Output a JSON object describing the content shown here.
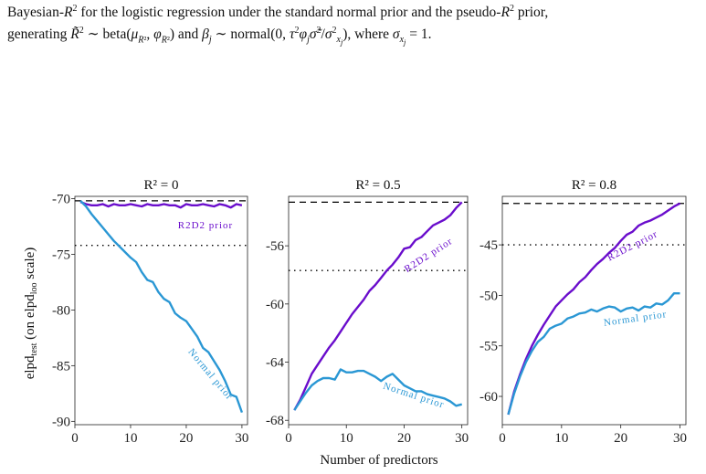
{
  "caption": {
    "line1": "Bayesian-R² for the logistic regression under the standard normal prior and the pseudo-R² prior,",
    "line2": "generating R̃² ∼ beta(μR², φR²) and βj ∼ normal(0, τ²φj σ̃²/σ²xj), where σxj = 1."
  },
  "colors": {
    "r2d2": "#6a0dcc",
    "normal": "#2a97d4",
    "reference": "#000000"
  },
  "chart_data": [
    {
      "type": "line",
      "title": "R² = 0",
      "ylabel": "elpd_test (on elpd_loo scale)",
      "xlim": [
        0,
        31
      ],
      "ylim": [
        -90.3,
        -69.8
      ],
      "xticks": [
        0,
        10,
        20,
        30
      ],
      "yticks": [
        -70,
        -75,
        -80,
        -85,
        -90
      ],
      "hline_dashed": -70.2,
      "hline_dotted": -74.2,
      "x": [
        1,
        2,
        3,
        4,
        5,
        6,
        7,
        8,
        9,
        10,
        11,
        12,
        13,
        14,
        15,
        16,
        17,
        18,
        19,
        20,
        21,
        22,
        23,
        24,
        25,
        26,
        27,
        28,
        29,
        30
      ],
      "series": [
        {
          "name": "R2D2 prior",
          "color": "#6a0dcc",
          "values": [
            -70.3,
            -70.5,
            -70.6,
            -70.6,
            -70.5,
            -70.7,
            -70.5,
            -70.6,
            -70.6,
            -70.5,
            -70.6,
            -70.7,
            -70.5,
            -70.6,
            -70.6,
            -70.5,
            -70.6,
            -70.6,
            -70.8,
            -70.5,
            -70.6,
            -70.6,
            -70.5,
            -70.6,
            -70.7,
            -70.5,
            -70.6,
            -70.8,
            -70.5,
            -70.6
          ]
        },
        {
          "name": "Normal prior",
          "color": "#2a97d4",
          "values": [
            -70.2,
            -70.7,
            -71.4,
            -72.0,
            -72.6,
            -73.2,
            -73.8,
            -74.3,
            -74.8,
            -75.3,
            -75.7,
            -76.6,
            -77.3,
            -77.5,
            -78.4,
            -79.0,
            -79.3,
            -80.3,
            -80.7,
            -81.0,
            -81.7,
            -82.4,
            -83.4,
            -83.8,
            -84.6,
            -85.4,
            -86.4,
            -87.6,
            -87.8,
            -89.2
          ]
        }
      ]
    },
    {
      "type": "line",
      "title": "R² = 0.5",
      "ylabel": "",
      "xlim": [
        0,
        31
      ],
      "ylim": [
        -68.3,
        -52.6
      ],
      "xticks": [
        0,
        10,
        20,
        30
      ],
      "yticks": [
        -56,
        -60,
        -64,
        -68
      ],
      "hline_dashed": -53.0,
      "hline_dotted": -57.7,
      "x": [
        1,
        2,
        3,
        4,
        5,
        6,
        7,
        8,
        9,
        10,
        11,
        12,
        13,
        14,
        15,
        16,
        17,
        18,
        19,
        20,
        21,
        22,
        23,
        24,
        25,
        26,
        27,
        28,
        29,
        30
      ],
      "series": [
        {
          "name": "R2D2 prior",
          "color": "#6a0dcc",
          "values": [
            -67.3,
            -66.6,
            -65.7,
            -64.8,
            -64.2,
            -63.6,
            -63.0,
            -62.5,
            -61.9,
            -61.3,
            -60.7,
            -60.2,
            -59.7,
            -59.1,
            -58.7,
            -58.2,
            -57.7,
            -57.3,
            -56.8,
            -56.2,
            -56.1,
            -55.6,
            -55.4,
            -55.0,
            -54.6,
            -54.4,
            -54.2,
            -53.9,
            -53.4,
            -53.0
          ]
        },
        {
          "name": "Normal prior",
          "color": "#2a97d4",
          "values": [
            -67.3,
            -66.7,
            -66.1,
            -65.6,
            -65.3,
            -65.1,
            -65.1,
            -65.2,
            -64.5,
            -64.7,
            -64.7,
            -64.6,
            -64.6,
            -64.8,
            -65.0,
            -65.3,
            -65.0,
            -64.8,
            -65.2,
            -65.6,
            -65.8,
            -66.0,
            -66.0,
            -66.2,
            -66.3,
            -66.4,
            -66.5,
            -66.7,
            -67.0,
            -66.9
          ]
        }
      ]
    },
    {
      "type": "line",
      "title": "R² = 0.8",
      "ylabel": "",
      "xlim": [
        0,
        31
      ],
      "ylim": [
        -62.8,
        -40.2
      ],
      "xticks": [
        0,
        10,
        20,
        30
      ],
      "yticks": [
        -45,
        -50,
        -55,
        -60
      ],
      "hline_dashed": -40.9,
      "hline_dotted": -45.0,
      "x": [
        1,
        2,
        3,
        4,
        5,
        6,
        7,
        8,
        9,
        10,
        11,
        12,
        13,
        14,
        15,
        16,
        17,
        18,
        19,
        20,
        21,
        22,
        23,
        24,
        25,
        26,
        27,
        28,
        29,
        30
      ],
      "series": [
        {
          "name": "R2D2 prior",
          "color": "#6a0dcc",
          "values": [
            -61.8,
            -59.5,
            -57.8,
            -56.3,
            -55.0,
            -53.9,
            -52.9,
            -52.0,
            -51.1,
            -50.5,
            -49.9,
            -49.4,
            -48.7,
            -48.2,
            -47.5,
            -46.9,
            -46.4,
            -45.8,
            -45.3,
            -44.6,
            -44.0,
            -43.7,
            -43.1,
            -42.8,
            -42.6,
            -42.3,
            -42.0,
            -41.6,
            -41.2,
            -40.9
          ]
        },
        {
          "name": "Normal prior",
          "color": "#2a97d4",
          "values": [
            -61.8,
            -59.7,
            -58.0,
            -56.6,
            -55.5,
            -54.6,
            -54.1,
            -53.3,
            -53.0,
            -52.8,
            -52.3,
            -52.1,
            -51.8,
            -51.7,
            -51.4,
            -51.6,
            -51.3,
            -51.1,
            -51.2,
            -51.6,
            -51.3,
            -51.2,
            -51.5,
            -51.1,
            -51.2,
            -50.8,
            -50.9,
            -50.5,
            -49.8,
            -49.8
          ]
        }
      ]
    }
  ],
  "xlabel": "Number of predictors",
  "curve_labels": {
    "r2d2": "R2D2 prior",
    "normal": "Normal prior"
  }
}
